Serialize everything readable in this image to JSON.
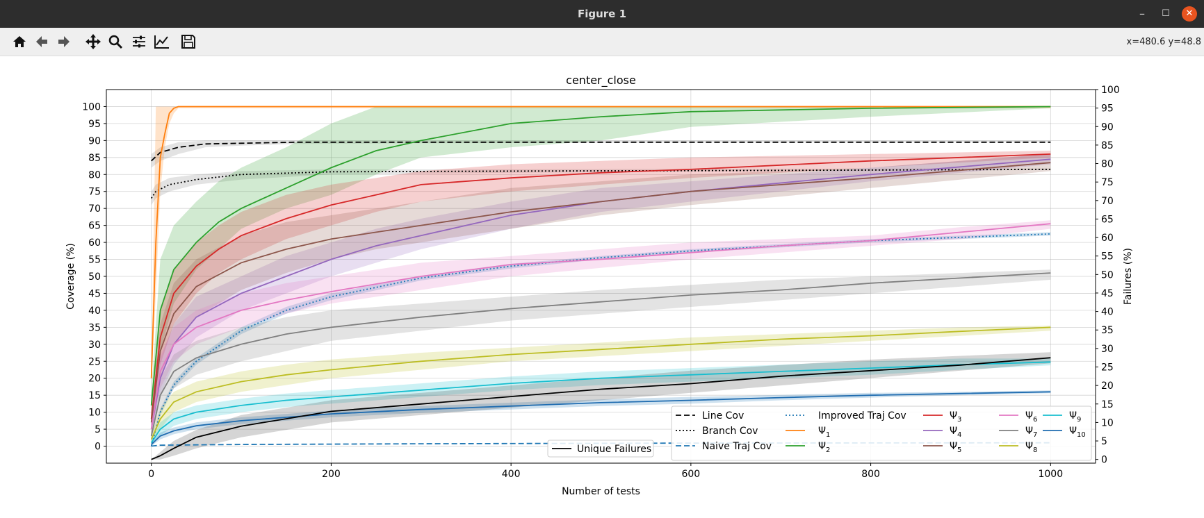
{
  "window": {
    "title": "Figure 1",
    "minimize": "–",
    "maximize": "☐",
    "close": "✕"
  },
  "toolbar": {
    "buttons": [
      "home-icon",
      "back-icon",
      "forward-icon",
      "pan-icon",
      "zoom-icon",
      "configure-subplots-icon",
      "edit-axis-icon",
      "save-icon"
    ],
    "coords": "x=480.6 y=48.8"
  },
  "chart_data": {
    "type": "line",
    "title": "center_close",
    "xlabel": "Number of tests",
    "ylabel": "Coverage (%)",
    "ylabel_right": "Failures (%)",
    "xlim": [
      -50,
      1050
    ],
    "ylim": [
      -5,
      105
    ],
    "ylim_right": [
      -1,
      100
    ],
    "xticks": [
      0,
      200,
      400,
      600,
      800,
      1000
    ],
    "yticks": [
      0,
      5,
      10,
      15,
      20,
      25,
      30,
      35,
      40,
      45,
      50,
      55,
      60,
      65,
      70,
      75,
      80,
      85,
      90,
      95,
      100
    ],
    "yticks_right": [
      0,
      5,
      10,
      15,
      20,
      25,
      30,
      35,
      40,
      45,
      50,
      55,
      60,
      65,
      70,
      75,
      80,
      85,
      90,
      95,
      100
    ],
    "grid": true,
    "series": [
      {
        "name": "Line Cov",
        "color": "#000000",
        "style": "dashed",
        "band": "#808080",
        "x": [
          0,
          10,
          30,
          60,
          100,
          160,
          300,
          600,
          1000
        ],
        "y": [
          84,
          86.5,
          88,
          89,
          89.2,
          89.5,
          89.5,
          89.5,
          89.5
        ],
        "lo": [
          82,
          84,
          86,
          88,
          88.5,
          89,
          89.2,
          89.4,
          89.5
        ],
        "hi": [
          86,
          88,
          89.5,
          90,
          90,
          90,
          90,
          90,
          90
        ]
      },
      {
        "name": "Branch Cov",
        "color": "#000000",
        "style": "dotted",
        "band": "#808080",
        "x": [
          0,
          5,
          20,
          50,
          100,
          200,
          400,
          700,
          1000
        ],
        "y": [
          73,
          75,
          77,
          78.5,
          80,
          80.8,
          81,
          81.2,
          81.5
        ],
        "lo": [
          71,
          73,
          75,
          77,
          78.5,
          80,
          80.5,
          81,
          81.3
        ],
        "hi": [
          75,
          77,
          79,
          80,
          81,
          81.5,
          81.5,
          81.7,
          81.8
        ]
      },
      {
        "name": "Naive Traj Cov",
        "color": "#1f77b4",
        "style": "dashed",
        "band": null,
        "x": [
          0,
          10,
          100,
          300,
          600,
          1000
        ],
        "y": [
          0,
          0.3,
          0.5,
          0.7,
          0.9,
          1
        ],
        "lo": null,
        "hi": null
      },
      {
        "name": "Improved Traj Cov",
        "color": "#1f77b4",
        "style": "dotted",
        "band": "#1f77b4",
        "x": [
          0,
          10,
          25,
          50,
          100,
          150,
          200,
          300,
          400,
          500,
          600,
          700,
          800,
          900,
          1000
        ],
        "y": [
          0,
          10,
          18,
          25,
          34,
          40,
          44,
          49.5,
          53,
          55.5,
          57.5,
          59,
          60.5,
          61.5,
          62.5
        ],
        "lo": [
          0,
          9,
          17,
          24,
          33,
          39,
          43,
          48.8,
          52.3,
          55,
          57,
          58.5,
          60,
          61,
          62
        ],
        "hi": [
          0,
          11,
          19,
          26,
          35,
          41,
          45,
          50.2,
          53.7,
          56,
          58,
          59.5,
          61,
          62,
          63
        ]
      },
      {
        "name": "Ψ1",
        "color": "#ff7f0e",
        "style": "solid",
        "band": "#ff7f0e",
        "x": [
          0,
          5,
          10,
          15,
          20,
          25,
          30,
          1000
        ],
        "y": [
          20,
          60,
          85,
          92,
          98,
          99.5,
          100,
          100
        ],
        "lo": [
          18,
          45,
          75,
          88,
          95,
          98,
          99.5,
          99.5
        ],
        "hi": [
          22,
          100,
          100,
          100,
          100,
          100,
          100,
          100
        ]
      },
      {
        "name": "Ψ2",
        "color": "#2ca02c",
        "style": "solid",
        "band": "#2ca02c",
        "x": [
          0,
          10,
          25,
          50,
          75,
          100,
          150,
          200,
          250,
          300,
          400,
          500,
          600,
          800,
          1000
        ],
        "y": [
          12,
          40,
          52,
          60,
          66,
          70,
          76,
          82,
          87,
          90,
          95,
          97,
          98.5,
          99.5,
          100
        ],
        "lo": [
          8,
          28,
          42,
          52,
          58,
          64,
          70,
          74,
          80,
          85,
          88,
          90,
          94,
          97,
          99.5
        ],
        "hi": [
          16,
          55,
          65,
          72,
          78,
          82,
          88,
          95,
          100,
          100,
          100,
          100,
          100,
          100,
          100
        ]
      },
      {
        "name": "Ψ3",
        "color": "#d62728",
        "style": "solid",
        "band": "#d62728",
        "x": [
          0,
          10,
          25,
          50,
          75,
          100,
          150,
          200,
          250,
          300,
          400,
          500,
          600,
          800,
          1000
        ],
        "y": [
          8,
          32,
          45,
          53,
          58,
          62,
          67,
          71,
          74,
          77,
          79,
          80.5,
          81.5,
          84,
          86
        ],
        "lo": [
          6,
          24,
          36,
          45,
          51,
          55,
          61,
          65,
          69,
          72,
          75,
          77,
          79,
          82,
          85
        ],
        "hi": [
          10,
          40,
          52,
          60,
          65,
          69,
          74,
          77,
          79,
          81,
          83,
          84,
          85,
          86,
          87
        ]
      },
      {
        "name": "Ψ4",
        "color": "#9467bd",
        "style": "solid",
        "band": "#9467bd",
        "x": [
          0,
          10,
          25,
          50,
          100,
          150,
          200,
          250,
          300,
          400,
          500,
          600,
          800,
          1000
        ],
        "y": [
          5,
          20,
          30,
          38,
          45,
          50,
          55,
          59,
          62,
          68,
          72,
          75,
          80,
          84.5
        ],
        "lo": [
          3,
          15,
          24,
          32,
          40,
          45,
          50,
          54,
          58,
          64,
          69,
          72,
          78,
          83
        ],
        "hi": [
          7,
          26,
          36,
          44,
          50,
          56,
          60,
          64,
          67,
          72,
          76,
          78,
          82,
          86
        ]
      },
      {
        "name": "Ψ5",
        "color": "#8c564b",
        "style": "solid",
        "band": "#8c564b",
        "x": [
          0,
          10,
          25,
          50,
          100,
          150,
          200,
          250,
          300,
          400,
          500,
          600,
          800,
          1000
        ],
        "y": [
          7,
          28,
          39,
          47,
          54,
          58,
          61,
          63,
          65,
          69,
          72,
          75,
          79,
          83.5
        ],
        "lo": [
          5,
          20,
          30,
          38,
          46,
          51,
          55,
          58,
          60,
          64,
          68,
          71,
          76,
          81
        ],
        "hi": [
          9,
          36,
          48,
          55,
          62,
          66,
          68,
          70,
          72,
          76,
          78,
          80,
          82,
          86
        ]
      },
      {
        "name": "Ψ6",
        "color": "#e377c2",
        "style": "solid",
        "band": "#e377c2",
        "x": [
          0,
          10,
          25,
          50,
          100,
          150,
          200,
          300,
          400,
          500,
          600,
          700,
          800,
          900,
          1000
        ],
        "y": [
          5,
          22,
          30,
          35,
          40,
          43,
          45.5,
          50,
          53.5,
          55,
          57,
          59,
          60.5,
          63,
          65.5
        ],
        "lo": [
          3,
          17,
          25,
          30,
          35,
          39,
          42,
          46,
          50,
          52.5,
          55,
          57,
          59,
          61,
          64
        ],
        "hi": [
          7,
          27,
          35,
          40,
          45,
          48,
          50,
          54,
          56,
          58,
          60,
          61,
          62,
          64.5,
          66.5
        ]
      },
      {
        "name": "Ψ7",
        "color": "#7f7f7f",
        "style": "solid",
        "band": "#7f7f7f",
        "x": [
          0,
          10,
          25,
          50,
          100,
          150,
          200,
          300,
          400,
          500,
          600,
          700,
          800,
          900,
          1000
        ],
        "y": [
          3,
          15,
          22,
          26,
          30,
          33,
          35,
          38,
          40.5,
          42.5,
          44.5,
          46,
          48,
          49.5,
          51
        ],
        "lo": [
          2,
          10,
          17,
          21,
          25,
          28,
          31,
          34,
          37,
          39,
          41,
          43,
          45,
          47,
          49
        ],
        "hi": [
          4,
          20,
          27,
          31,
          35,
          38,
          40,
          42,
          44,
          46,
          47.5,
          49,
          50,
          51,
          52
        ]
      },
      {
        "name": "Ψ8",
        "color": "#bcbd22",
        "style": "solid",
        "band": "#bcbd22",
        "x": [
          0,
          10,
          25,
          50,
          100,
          150,
          200,
          300,
          400,
          500,
          600,
          700,
          800,
          900,
          1000
        ],
        "y": [
          2,
          8,
          13,
          16,
          19,
          21,
          22.5,
          25,
          27,
          28.5,
          30,
          31.5,
          32.5,
          33.8,
          35
        ],
        "lo": [
          1,
          5,
          10,
          13,
          16,
          18,
          20,
          22.5,
          25,
          26.5,
          28,
          29.5,
          31,
          32.5,
          34
        ],
        "hi": [
          3,
          11,
          16,
          19,
          22,
          24,
          25.5,
          27.5,
          29,
          30.5,
          32,
          33,
          34,
          35,
          35.5
        ]
      },
      {
        "name": "Ψ9",
        "color": "#17becf",
        "style": "solid",
        "band": "#17becf",
        "x": [
          0,
          10,
          25,
          50,
          100,
          150,
          200,
          300,
          400,
          500,
          600,
          700,
          800,
          900,
          1000
        ],
        "y": [
          1,
          5,
          8,
          10,
          12,
          13.5,
          14.5,
          16.5,
          18.5,
          20,
          21,
          22,
          23,
          24,
          24.8
        ],
        "lo": [
          0,
          3,
          6,
          8,
          10,
          11.5,
          12.5,
          14.5,
          16.5,
          18,
          19,
          20,
          21,
          22.5,
          23.8
        ],
        "hi": [
          2,
          7,
          10,
          12,
          14,
          15.5,
          16.5,
          18.5,
          20.5,
          22,
          23,
          24,
          25,
          25.8,
          25.8
        ]
      },
      {
        "name": "Ψ10",
        "color": "#1f6cb0",
        "style": "solid",
        "band": "#1f77b4",
        "x": [
          0,
          10,
          25,
          50,
          100,
          150,
          200,
          300,
          400,
          500,
          600,
          700,
          800,
          900,
          1000
        ],
        "y": [
          0.5,
          3,
          4.5,
          6,
          7.5,
          8.5,
          9.5,
          10.8,
          11.8,
          12.8,
          13.5,
          14.3,
          15,
          15.5,
          16
        ],
        "lo": [
          0,
          2,
          3.5,
          5,
          6.5,
          7.5,
          8.5,
          9.8,
          10.8,
          11.8,
          12.5,
          13.5,
          14.3,
          15,
          15.6
        ],
        "hi": [
          1,
          4,
          5.5,
          7,
          8.5,
          9.5,
          10.5,
          11.8,
          12.8,
          13.8,
          14.5,
          15.1,
          15.7,
          16,
          16.4
        ]
      },
      {
        "name": "Unique Failures",
        "color": "#000000",
        "style": "solid",
        "band": "#404040",
        "axis": "right",
        "x": [
          0,
          10,
          25,
          50,
          100,
          150,
          200,
          300,
          400,
          500,
          600,
          700,
          800,
          900,
          1000
        ],
        "y": [
          0,
          1,
          3,
          6,
          9,
          11,
          13,
          15,
          17,
          19,
          20.5,
          22.5,
          24,
          25.5,
          27.5
        ],
        "lo": [
          0,
          0,
          1,
          3,
          6,
          8,
          10,
          12,
          14,
          16,
          18,
          20,
          22,
          24,
          26
        ],
        "hi": [
          0,
          2,
          5,
          8,
          12,
          14,
          16,
          18,
          20,
          22,
          24,
          25.5,
          27,
          28,
          29
        ]
      }
    ],
    "legend_main": [
      {
        "label": "Line Cov",
        "color": "#000000",
        "style": "dashed"
      },
      {
        "label": "Branch Cov",
        "color": "#000000",
        "style": "dotted"
      },
      {
        "label": "Naive Traj Cov",
        "color": "#1f77b4",
        "style": "dashed"
      },
      {
        "label": "Improved Traj Cov",
        "color": "#1f77b4",
        "style": "dotted"
      },
      {
        "label": "Ψ1",
        "color": "#ff7f0e",
        "style": "solid"
      },
      {
        "label": "Ψ2",
        "color": "#2ca02c",
        "style": "solid"
      },
      {
        "label": "Ψ3",
        "color": "#d62728",
        "style": "solid"
      },
      {
        "label": "Ψ4",
        "color": "#9467bd",
        "style": "solid"
      },
      {
        "label": "Ψ5",
        "color": "#8c564b",
        "style": "solid"
      },
      {
        "label": "Ψ6",
        "color": "#e377c2",
        "style": "solid"
      },
      {
        "label": "Ψ7",
        "color": "#7f7f7f",
        "style": "solid"
      },
      {
        "label": "Ψ8",
        "color": "#bcbd22",
        "style": "solid"
      },
      {
        "label": "Ψ9",
        "color": "#17becf",
        "style": "solid"
      },
      {
        "label": "Ψ10",
        "color": "#1f6cb0",
        "style": "solid"
      }
    ],
    "legend_failures": {
      "label": "Unique Failures",
      "color": "#000000",
      "style": "solid"
    },
    "legend_placement": "lower-right"
  }
}
